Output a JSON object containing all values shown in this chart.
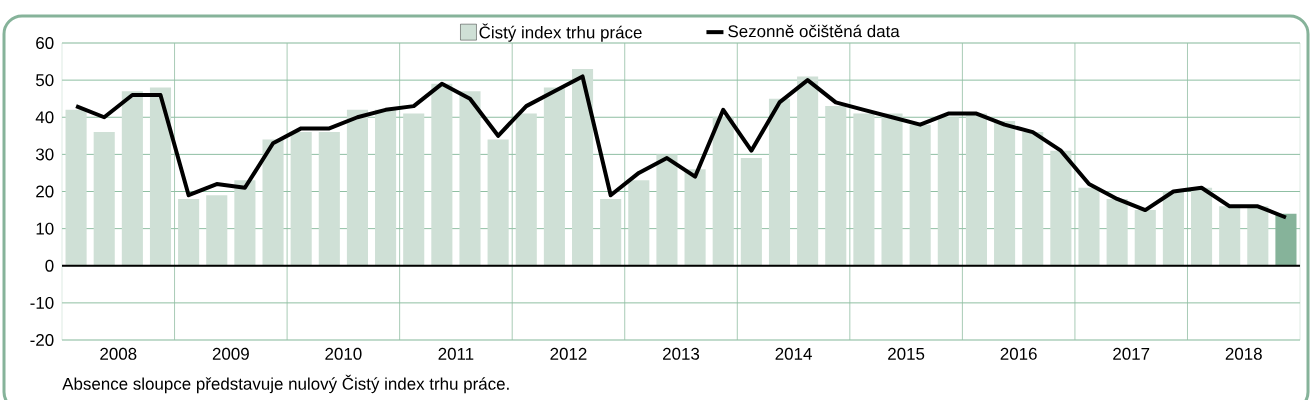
{
  "chart_data": {
    "type": "bar",
    "x": [
      2008.125,
      2008.375,
      2008.625,
      2008.875,
      2009.125,
      2009.375,
      2009.625,
      2009.875,
      2010.125,
      2010.375,
      2010.625,
      2010.875,
      2011.125,
      2011.375,
      2011.625,
      2011.875,
      2012.125,
      2012.375,
      2012.625,
      2012.875,
      2013.125,
      2013.375,
      2013.625,
      2013.875,
      2014.125,
      2014.375,
      2014.625,
      2014.875,
      2015.125,
      2015.375,
      2015.625,
      2015.875,
      2016.125,
      2016.375,
      2016.625,
      2016.875,
      2017.125,
      2017.375,
      2017.625,
      2017.875,
      2018.125,
      2018.375,
      2018.625,
      2018.875
    ],
    "series": [
      {
        "name": "Čistý index trhu práce",
        "color": "#cfe0d6",
        "colors": [
          "#cfe0d6",
          "#cfe0d6",
          "#cfe0d6",
          "#cfe0d6",
          "#cfe0d6",
          "#cfe0d6",
          "#cfe0d6",
          "#cfe0d6",
          "#cfe0d6",
          "#cfe0d6",
          "#cfe0d6",
          "#cfe0d6",
          "#cfe0d6",
          "#cfe0d6",
          "#cfe0d6",
          "#cfe0d6",
          "#cfe0d6",
          "#cfe0d6",
          "#cfe0d6",
          "#cfe0d6",
          "#cfe0d6",
          "#cfe0d6",
          "#cfe0d6",
          "#cfe0d6",
          "#cfe0d6",
          "#cfe0d6",
          "#cfe0d6",
          "#cfe0d6",
          "#cfe0d6",
          "#cfe0d6",
          "#cfe0d6",
          "#cfe0d6",
          "#cfe0d6",
          "#cfe0d6",
          "#cfe0d6",
          "#cfe0d6",
          "#cfe0d6",
          "#cfe0d6",
          "#cfe0d6",
          "#cfe0d6",
          "#cfe0d6",
          "#cfe0d6",
          "#cfe0d6",
          "#86b39a"
        ],
        "values": [
          42,
          36,
          47,
          48,
          18,
          19,
          23,
          34,
          36,
          36,
          42,
          42,
          41,
          49,
          47,
          34,
          41,
          48,
          53,
          18,
          23,
          30,
          26,
          40,
          29,
          45,
          51,
          43,
          41,
          41,
          38,
          40,
          41,
          39,
          36,
          31,
          21,
          18,
          15,
          20,
          21,
          16,
          16,
          14
        ]
      },
      {
        "name": "Sezonně očištěná data",
        "type": "line",
        "color": "#000000",
        "values": [
          43,
          40,
          46,
          46,
          19,
          22,
          21,
          33,
          37,
          37,
          40,
          42,
          43,
          49,
          45,
          35,
          43,
          47,
          51,
          19,
          25,
          29,
          24,
          42,
          31,
          44,
          50,
          44,
          42,
          40,
          38,
          41,
          41,
          38,
          36,
          31,
          22,
          18,
          15,
          20,
          21,
          16,
          16,
          13
        ]
      }
    ],
    "xlim": [
      2008,
      2019
    ],
    "xticks": [
      {
        "value": 2009,
        "label": null
      },
      {
        "value": 2010,
        "label": null
      },
      {
        "value": 2011,
        "label": null
      },
      {
        "value": 2012,
        "label": null
      },
      {
        "value": 2013,
        "label": null
      },
      {
        "value": 2014,
        "label": null
      },
      {
        "value": 2015,
        "label": null
      },
      {
        "value": 2016,
        "label": null
      },
      {
        "value": 2017,
        "label": null
      },
      {
        "value": 2018,
        "label": null
      },
      {
        "value": 2008.5,
        "label": "2008"
      },
      {
        "value": 2009.5,
        "label": "2009"
      },
      {
        "value": 2010.5,
        "label": "2010"
      },
      {
        "value": 2011.5,
        "label": "2011"
      },
      {
        "value": 2012.5,
        "label": "2012"
      },
      {
        "value": 2013.5,
        "label": "2013"
      },
      {
        "value": 2014.5,
        "label": "2014"
      },
      {
        "value": 2015.5,
        "label": "2015"
      },
      {
        "value": 2016.5,
        "label": "2016"
      },
      {
        "value": 2017.5,
        "label": "2017"
      },
      {
        "value": 2018.5,
        "label": "2018"
      }
    ],
    "ylim": [
      -20,
      60
    ],
    "yticks": [
      -20,
      -10,
      0,
      10,
      20,
      30,
      40,
      50,
      60
    ],
    "ref_lines": [
      {
        "axis": "y",
        "value": 0,
        "color": "#000000"
      }
    ],
    "grid": true,
    "legend": "top",
    "annotations": [
      "Absence sloupce představuje nulový Čistý index trhu práce."
    ]
  }
}
